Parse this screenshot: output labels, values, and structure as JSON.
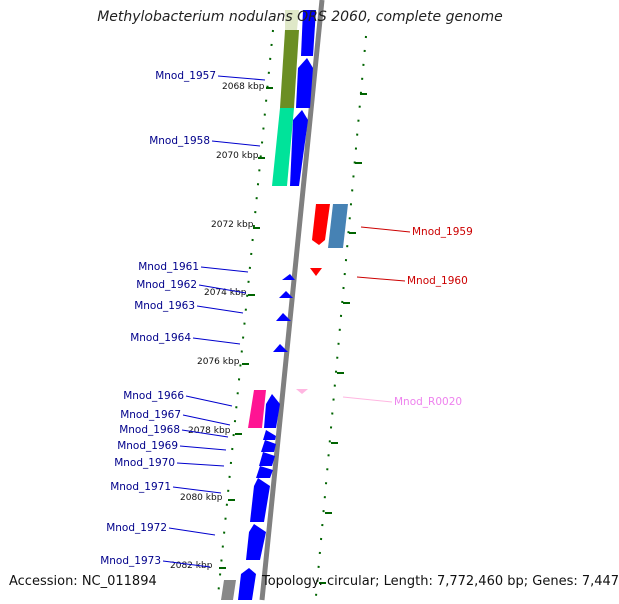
{
  "header": {
    "title": "Methylobacterium nodulans ORS 2060, complete genome"
  },
  "footer": {
    "accession": "Accession: NC_011894",
    "topology": "Topology: circular; Length: 7,772,460 bp; Genes: 7,447"
  },
  "colors": {
    "gene_forward": "#0000ff",
    "gene_reverse": "#ff0000",
    "label_forward": "#00008b",
    "label_reverse": "#cc0000",
    "label_rna": "#ee82ee",
    "tick": "#006400",
    "backbone": "#808080"
  },
  "scale_labels": [
    "2068 kbp",
    "2070 kbp",
    "2072 kbp",
    "2074 kbp",
    "2076 kbp",
    "2078 kbp",
    "2080 kbp",
    "2082 kbp"
  ],
  "genes": [
    {
      "id": "Mnod_1957"
    },
    {
      "id": "Mnod_1958"
    },
    {
      "id": "Mnod_1959"
    },
    {
      "id": "Mnod_1960"
    },
    {
      "id": "Mnod_1961"
    },
    {
      "id": "Mnod_1962"
    },
    {
      "id": "Mnod_1963"
    },
    {
      "id": "Mnod_1964"
    },
    {
      "id": "Mnod_R0020"
    },
    {
      "id": "Mnod_1966"
    },
    {
      "id": "Mnod_1967"
    },
    {
      "id": "Mnod_1968"
    },
    {
      "id": "Mnod_1969"
    },
    {
      "id": "Mnod_1970"
    },
    {
      "id": "Mnod_1971"
    },
    {
      "id": "Mnod_1972"
    },
    {
      "id": "Mnod_1973"
    }
  ]
}
